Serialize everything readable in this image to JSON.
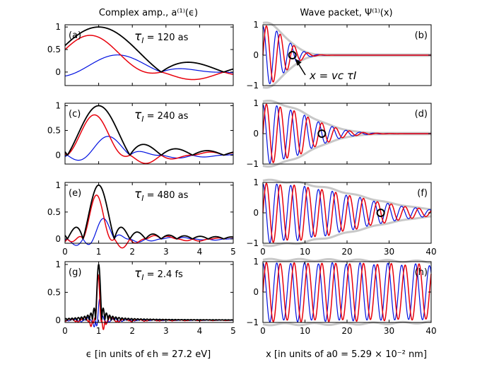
{
  "chart_data": {
    "type": "line",
    "column_titles": {
      "left": "Complex amp., a⁽¹⁾(ϵ)",
      "right": "Wave packet, Ψ⁽¹⁾(x)"
    },
    "xlabels": {
      "left": "ϵ  [in units of ϵh = 27.2 eV]",
      "right": "x [in units of a0 = 5.29 × 10⁻² nm]"
    },
    "annotation": "x = vc τI",
    "colors": {
      "envelope": "#000000",
      "real": "#e8000b",
      "imag": "#0010e0",
      "grey": "#c8c8c8"
    },
    "left": {
      "xlim": [
        0,
        5
      ],
      "xticks": [
        "0",
        "1",
        "2",
        "3",
        "4",
        "5"
      ],
      "panels": [
        {
          "label": "(a)",
          "tau_text": "= 120 as",
          "tau_as": 120,
          "ylim": [
            -0.3,
            1.05
          ],
          "yticks": [
            "1",
            "0.5",
            "0"
          ],
          "show_x": false
        },
        {
          "label": "(c)",
          "tau_text": "= 240 as",
          "tau_as": 240,
          "ylim": [
            -0.18,
            1.05
          ],
          "yticks": [
            "1",
            "0.5",
            "0"
          ],
          "show_x": false
        },
        {
          "label": "(e)",
          "tau_text": "= 480 as",
          "tau_as": 480,
          "ylim": [
            -0.08,
            1.05
          ],
          "yticks": [
            "1",
            "0.5",
            "0"
          ],
          "show_x": true
        },
        {
          "label": "(g)",
          "tau_text": "= 2.4 fs",
          "tau_as": 2400,
          "ylim": [
            -0.04,
            1.05
          ],
          "yticks": [
            "1",
            "0.5",
            "0"
          ],
          "show_x": true
        }
      ]
    },
    "right": {
      "xlim": [
        0,
        40
      ],
      "ylim": [
        -1,
        1
      ],
      "xticks": [
        "0",
        "10",
        "20",
        "30",
        "40"
      ],
      "yticks": [
        "1",
        "0",
        "−1"
      ],
      "panels": [
        {
          "label": "(b)",
          "decay_length": 7,
          "marker_x": 7,
          "show_x": false
        },
        {
          "label": "(d)",
          "decay_length": 14,
          "marker_x": 14,
          "show_x": false
        },
        {
          "label": "(f)",
          "decay_length": 28,
          "marker_x": 28,
          "show_x": true
        },
        {
          "label": "(h)",
          "decay_length": 140,
          "marker_x": null,
          "show_x": true
        }
      ]
    }
  }
}
